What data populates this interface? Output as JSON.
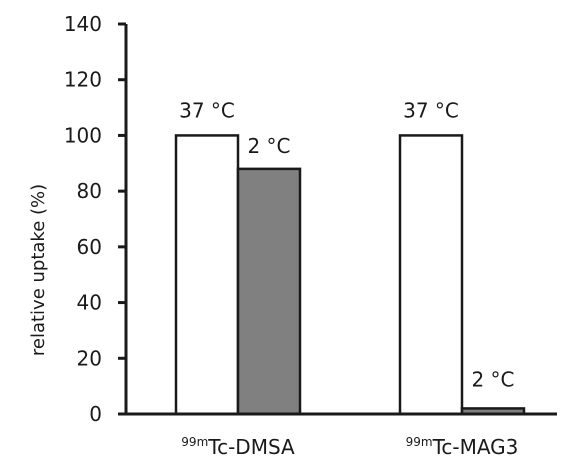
{
  "chart_data": {
    "type": "bar",
    "ylabel": "relative uptake (%)",
    "ylim": [
      0,
      140
    ],
    "yticks": [
      0,
      20,
      40,
      60,
      80,
      100,
      120,
      140
    ],
    "categories": [
      {
        "sup": "99m",
        "name": "Tc-DMSA"
      },
      {
        "sup": "99m",
        "name": "Tc-MAG3"
      }
    ],
    "series": [
      {
        "label": "37 °C",
        "color": "#ffffff",
        "values": [
          100,
          100
        ]
      },
      {
        "label": "2 °C",
        "color": "#808080",
        "values": [
          88,
          2
        ]
      }
    ],
    "grid": false,
    "legend": "none"
  }
}
